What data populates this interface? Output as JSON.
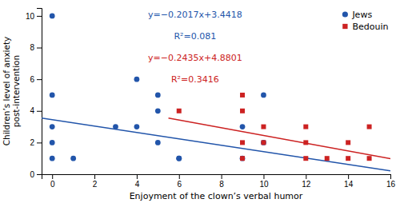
{
  "chart_data": {
    "type": "scatter",
    "xlabel": "Enjoyment of the clown’s verbal humor",
    "ylabel": "Children’s level of anxiety\npost-intervention",
    "xlim": [
      -0.5,
      16
    ],
    "ylim": [
      0,
      10.5
    ],
    "xticks": [
      0,
      2,
      4,
      6,
      8,
      10,
      12,
      14,
      16
    ],
    "yticks": [
      0,
      2,
      4,
      6,
      8,
      10
    ],
    "grid": false,
    "legend": "upper right",
    "series": [
      {
        "name": "Jews",
        "type": "scatter",
        "marker": "circle",
        "color": "#2255AA",
        "x": [
          0,
          0,
          0,
          0,
          0,
          1,
          3,
          4,
          4,
          5,
          5,
          5,
          6,
          6,
          9,
          9,
          10,
          10
        ],
        "values": [
          10,
          5,
          3,
          2,
          1,
          1,
          3,
          6,
          3,
          5,
          4,
          2,
          1,
          1,
          3,
          1,
          5,
          2
        ]
      },
      {
        "name": "Bedouin",
        "type": "scatter",
        "marker": "square",
        "color": "#CC2222",
        "x": [
          6,
          9,
          9,
          9,
          9,
          10,
          10,
          12,
          12,
          12,
          13,
          14,
          14,
          15,
          15
        ],
        "values": [
          4,
          5,
          4,
          2,
          1,
          3,
          2,
          3,
          2,
          1,
          1,
          2,
          1,
          3,
          1
        ]
      },
      {
        "type": "line",
        "color": "#2255AA",
        "x": [
          -0.5,
          16
        ],
        "values": [
          3.54265,
          0.2146
        ]
      },
      {
        "type": "line",
        "color": "#CC2222",
        "x": [
          5.5,
          16
        ],
        "values": [
          3.54085,
          0.9841
        ]
      }
    ],
    "annotations": [
      {
        "text": "y=−0.2017x+3.4418",
        "color": "#2255AA"
      },
      {
        "text": "R²=0.081",
        "color": "#2255AA"
      },
      {
        "text": "y=−0.2435x+4.8801",
        "color": "#CC2222"
      },
      {
        "text": "R²=0.3416",
        "color": "#CC2222"
      }
    ]
  }
}
